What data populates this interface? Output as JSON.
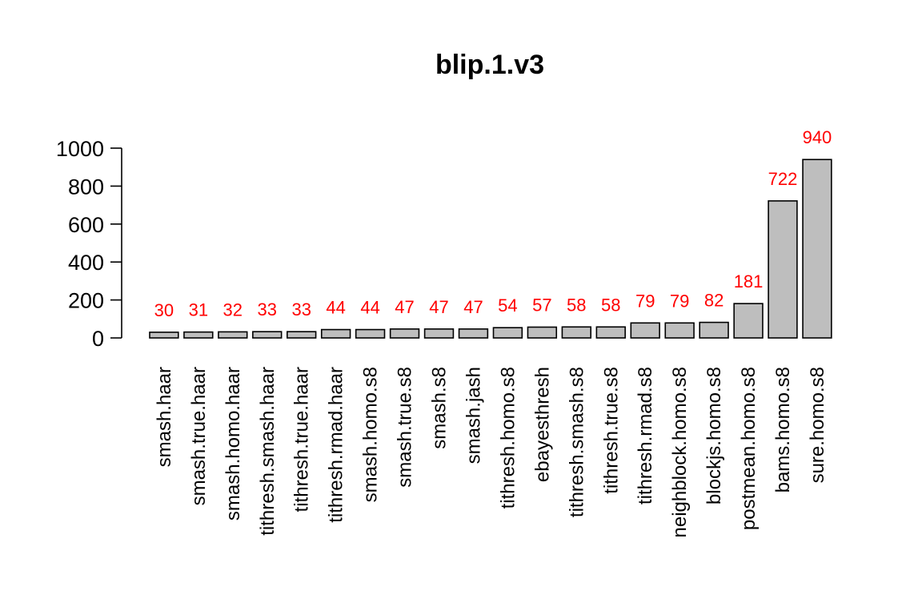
{
  "chart_data": {
    "type": "bar",
    "title": "blip.1.v3",
    "xlabel": "",
    "ylabel": "",
    "categories": [
      "smash.haar",
      "smash.true.haar",
      "smash.homo.haar",
      "tithresh.smash.haar",
      "tithresh.true.haar",
      "tithresh.rmad.haar",
      "smash.homo.s8",
      "smash.true.s8",
      "smash.s8",
      "smash.jash",
      "tithresh.homo.s8",
      "ebayesthresh",
      "tithresh.smash.s8",
      "tithresh.true.s8",
      "tithresh.rmad.s8",
      "neighblock.homo.s8",
      "blockjs.homo.s8",
      "postmean.homo.s8",
      "bams.homo.s8",
      "sure.homo.s8"
    ],
    "values": [
      30,
      31,
      32,
      33,
      33,
      44,
      44,
      47,
      47,
      47,
      54,
      57,
      58,
      58,
      79,
      79,
      82,
      181,
      722,
      940
    ],
    "data_labels": [
      "30",
      "31",
      "32",
      "33",
      "33",
      "44",
      "44",
      "47",
      "47",
      "47",
      "54",
      "57",
      "58",
      "58",
      "79",
      "79",
      "82",
      "181",
      "722",
      "940"
    ],
    "ylim": [
      0,
      1000
    ],
    "yticks": [
      "0",
      "200",
      "400",
      "600",
      "800",
      "1000"
    ],
    "grid": false,
    "colors": {
      "bar_fill": "#bebebe",
      "bar_stroke": "#000000",
      "data_label": "#ff0000"
    }
  }
}
